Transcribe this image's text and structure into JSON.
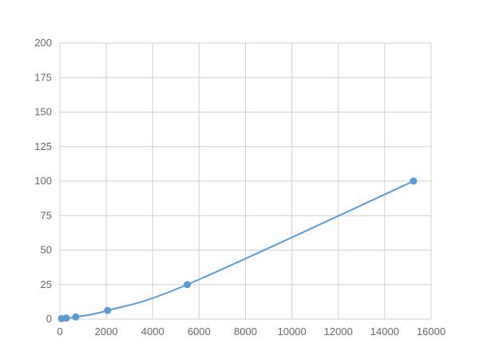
{
  "chart_data": {
    "type": "scatter",
    "title": "",
    "xlabel": "",
    "ylabel": "",
    "xlim": [
      0,
      16000
    ],
    "ylim": [
      0,
      200
    ],
    "xticks": [
      0,
      2000,
      4000,
      6000,
      8000,
      10000,
      12000,
      14000,
      16000
    ],
    "yticks": [
      0,
      25,
      50,
      75,
      100,
      125,
      150,
      175,
      200
    ],
    "grid": true,
    "legend": "none",
    "series": [
      {
        "x": [
          69,
          274,
          686,
          2058,
          5487,
          15240
        ],
        "y": [
          0.39,
          0.78,
          1.56,
          6.25,
          25,
          100
        ],
        "color": "#5b9bd5",
        "line": "smooth"
      }
    ]
  }
}
